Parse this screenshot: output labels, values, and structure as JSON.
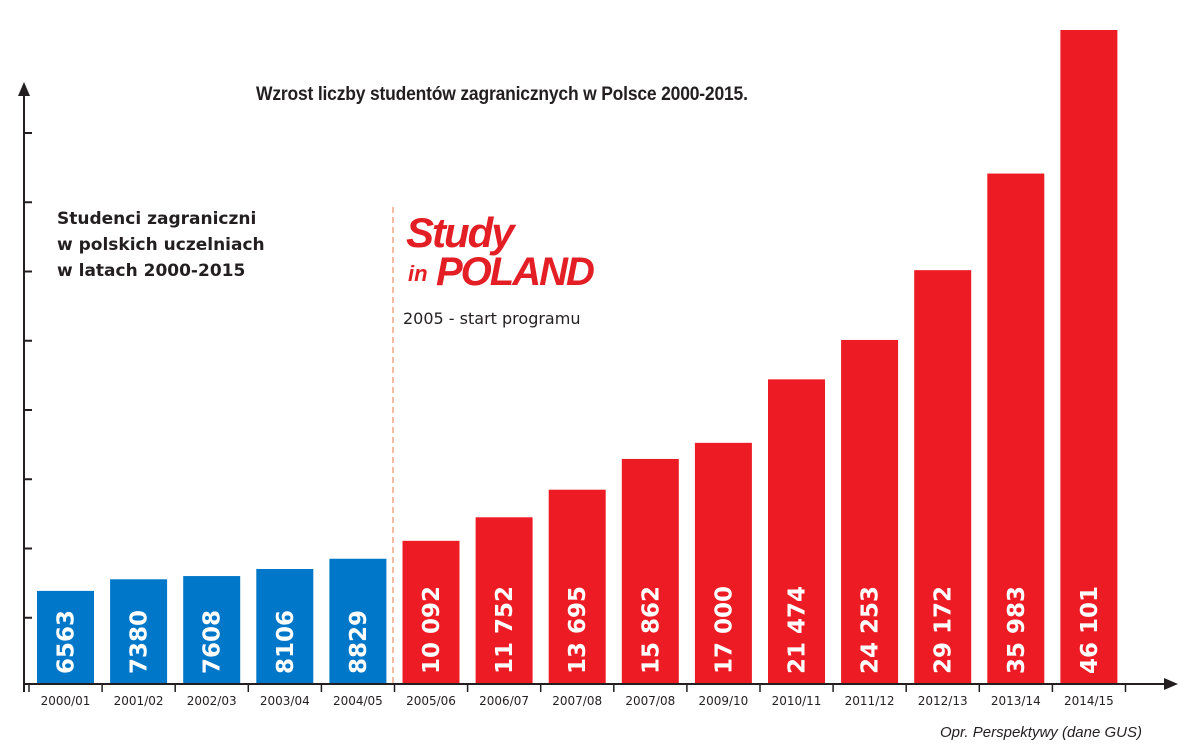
{
  "chart_data": {
    "type": "bar",
    "title": "Wzrost liczby studentów zagranicznych w Polsce 2000-2015.",
    "categories": [
      "2000/01",
      "2001/02",
      "2002/03",
      "2003/04",
      "2004/05",
      "2005/06",
      "2006/07",
      "2007/08",
      "2007/08",
      "2009/10",
      "2010/11",
      "2011/12",
      "2012/13",
      "2013/14",
      "2014/15"
    ],
    "values": [
      6563,
      7380,
      7608,
      8106,
      8829,
      10092,
      11752,
      13695,
      15862,
      17000,
      21474,
      24253,
      29172,
      35983,
      46101
    ],
    "value_labels": [
      "6563",
      "7380",
      "7608",
      "8106",
      "8829",
      "10 092",
      "11 752",
      "13 695",
      "15 862",
      "17 000",
      "21 474",
      "24 253",
      "29 172",
      "35 983",
      "46 101"
    ],
    "ylim": [
      0,
      50000
    ],
    "y_ticks_shown_without_labels": 8,
    "colors": {
      "before_program": "#0077c8",
      "after_program": "#ed1c24",
      "axis": "#231f20",
      "marker_line": "#f4a582"
    },
    "program_start_index": 5,
    "legend": "none",
    "grid": false
  },
  "annotations": {
    "side_note_lines": [
      "Studenci zagraniczni",
      "w polskich uczelniach",
      "w latach 2000-2015"
    ],
    "logo_top": "Study",
    "logo_in": "in",
    "logo_bottom": "POLAND",
    "program_note": "2005 - start programu",
    "source": "Opr. Perspektywy (dane GUS)"
  }
}
